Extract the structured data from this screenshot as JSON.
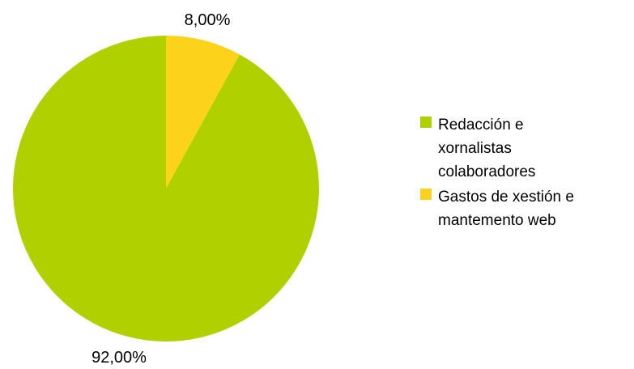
{
  "chart_data": {
    "type": "pie",
    "title": "",
    "slices": [
      {
        "name": "Gastos de xestión e mantemento web",
        "value": 8.0,
        "label": "8,00%",
        "color": "#fdd21a"
      },
      {
        "name": "Redacción e xornalistas colaboradores",
        "value": 92.0,
        "label": "92,00%",
        "color": "#b0d000"
      }
    ],
    "legend": {
      "position": "right",
      "items": [
        {
          "lines": [
            "Redacción e",
            "xornalistas",
            "colaboradores"
          ],
          "color": "#b0d000"
        },
        {
          "lines": [
            "Gastos de xestión e",
            "mantemento web"
          ],
          "color": "#fdd21a"
        }
      ]
    }
  }
}
